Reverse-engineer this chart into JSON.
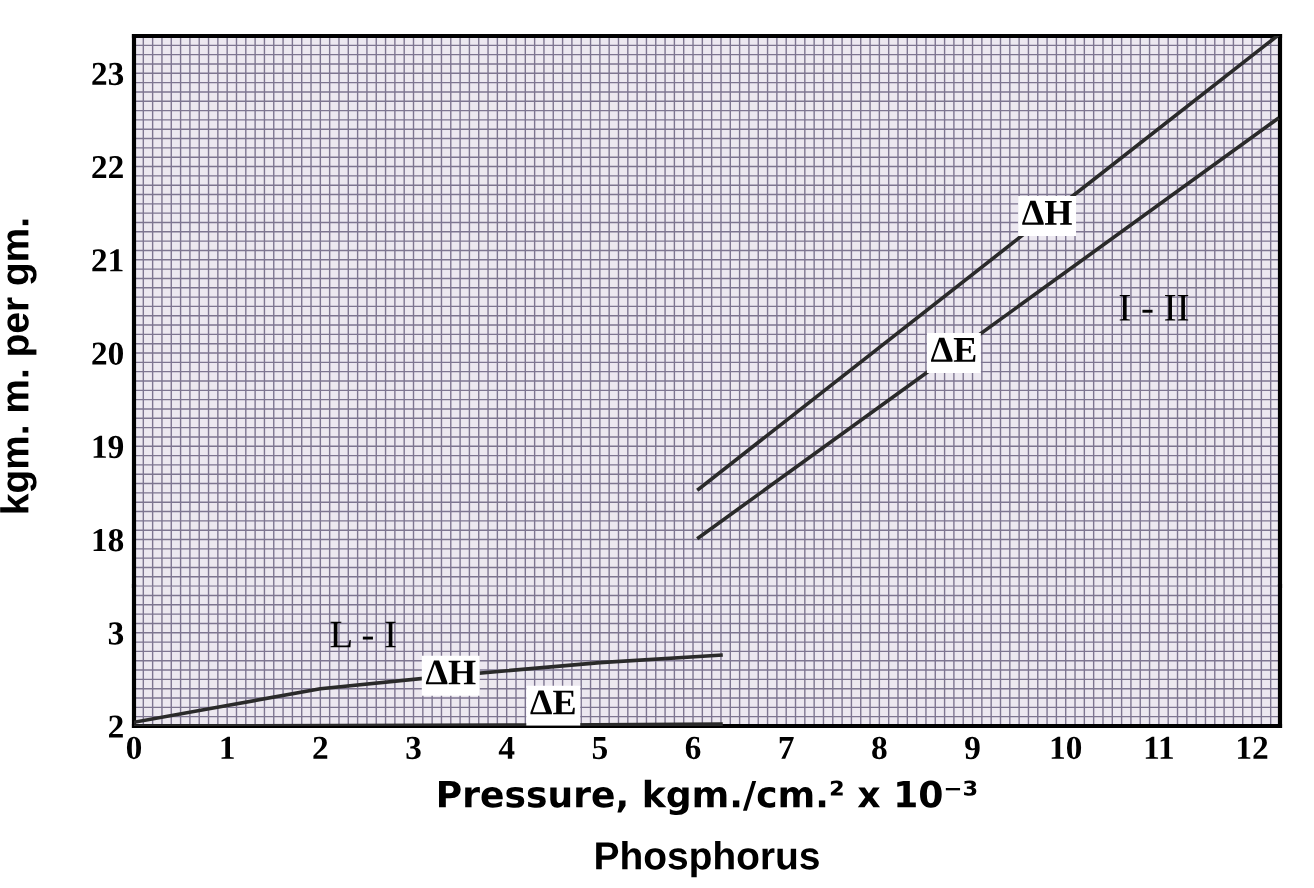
{
  "chart_data": [
    {
      "type": "line",
      "ylabel": "kgm. m. per gm.",
      "xlim": [
        0,
        12.3
      ],
      "xticks": [
        0,
        1,
        2,
        3,
        4,
        5,
        6,
        7,
        8,
        9,
        10,
        11,
        12
      ],
      "ylim": [
        17.5,
        23.4
      ],
      "yticks": [
        18,
        19,
        20,
        21,
        22,
        23
      ],
      "tick_labels": "y",
      "grid": true,
      "series": [
        {
          "name": "ΔH",
          "color": "#2a2a2a",
          "x": [
            6.06,
            9.8,
            12.27
          ],
          "values": [
            18.54,
            21.47,
            23.4
          ]
        },
        {
          "name": "ΔE",
          "color": "#2a2a2a",
          "x": [
            6.06,
            8.8,
            12.27
          ],
          "values": [
            18.02,
            20.0,
            22.51
          ]
        }
      ],
      "annotations": [
        "I - II"
      ]
    },
    {
      "type": "line",
      "xlabel": "Pressure, kgm./cm.² x 10⁻³",
      "xlim": [
        0,
        12.3
      ],
      "xticks": [
        0,
        1,
        2,
        3,
        4,
        5,
        6,
        7,
        8,
        9,
        10,
        11,
        12
      ],
      "ylim": [
        2,
        3.5
      ],
      "yticks": [
        2,
        3
      ],
      "grid": true,
      "series": [
        {
          "name": "ΔH",
          "color": "#2a2a2a",
          "x": [
            0,
            1,
            2,
            3.4,
            5,
            6.3
          ],
          "values": [
            2.04,
            2.22,
            2.4,
            2.54,
            2.68,
            2.76
          ]
        },
        {
          "name": "ΔE",
          "color": "#2a2a2a",
          "x": [
            0,
            4.5,
            6.3
          ],
          "values": [
            2.0,
            2.01,
            2.02
          ]
        }
      ],
      "annotations": [
        "L - I",
        "Phosphorus"
      ]
    }
  ]
}
